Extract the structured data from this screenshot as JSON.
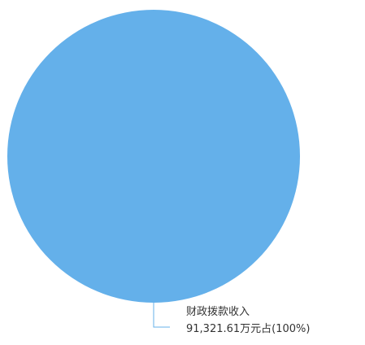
{
  "chart_data": {
    "type": "pie",
    "title": "",
    "slices": [
      {
        "name": "财政拨款收入",
        "value": 91321.61,
        "value_label": "91,321.61万元占(100%)",
        "percent": 100,
        "color": "#64b0ea"
      }
    ],
    "legend": "none",
    "label_line_color": "#64b0ea",
    "label_text_color": "#333333"
  }
}
